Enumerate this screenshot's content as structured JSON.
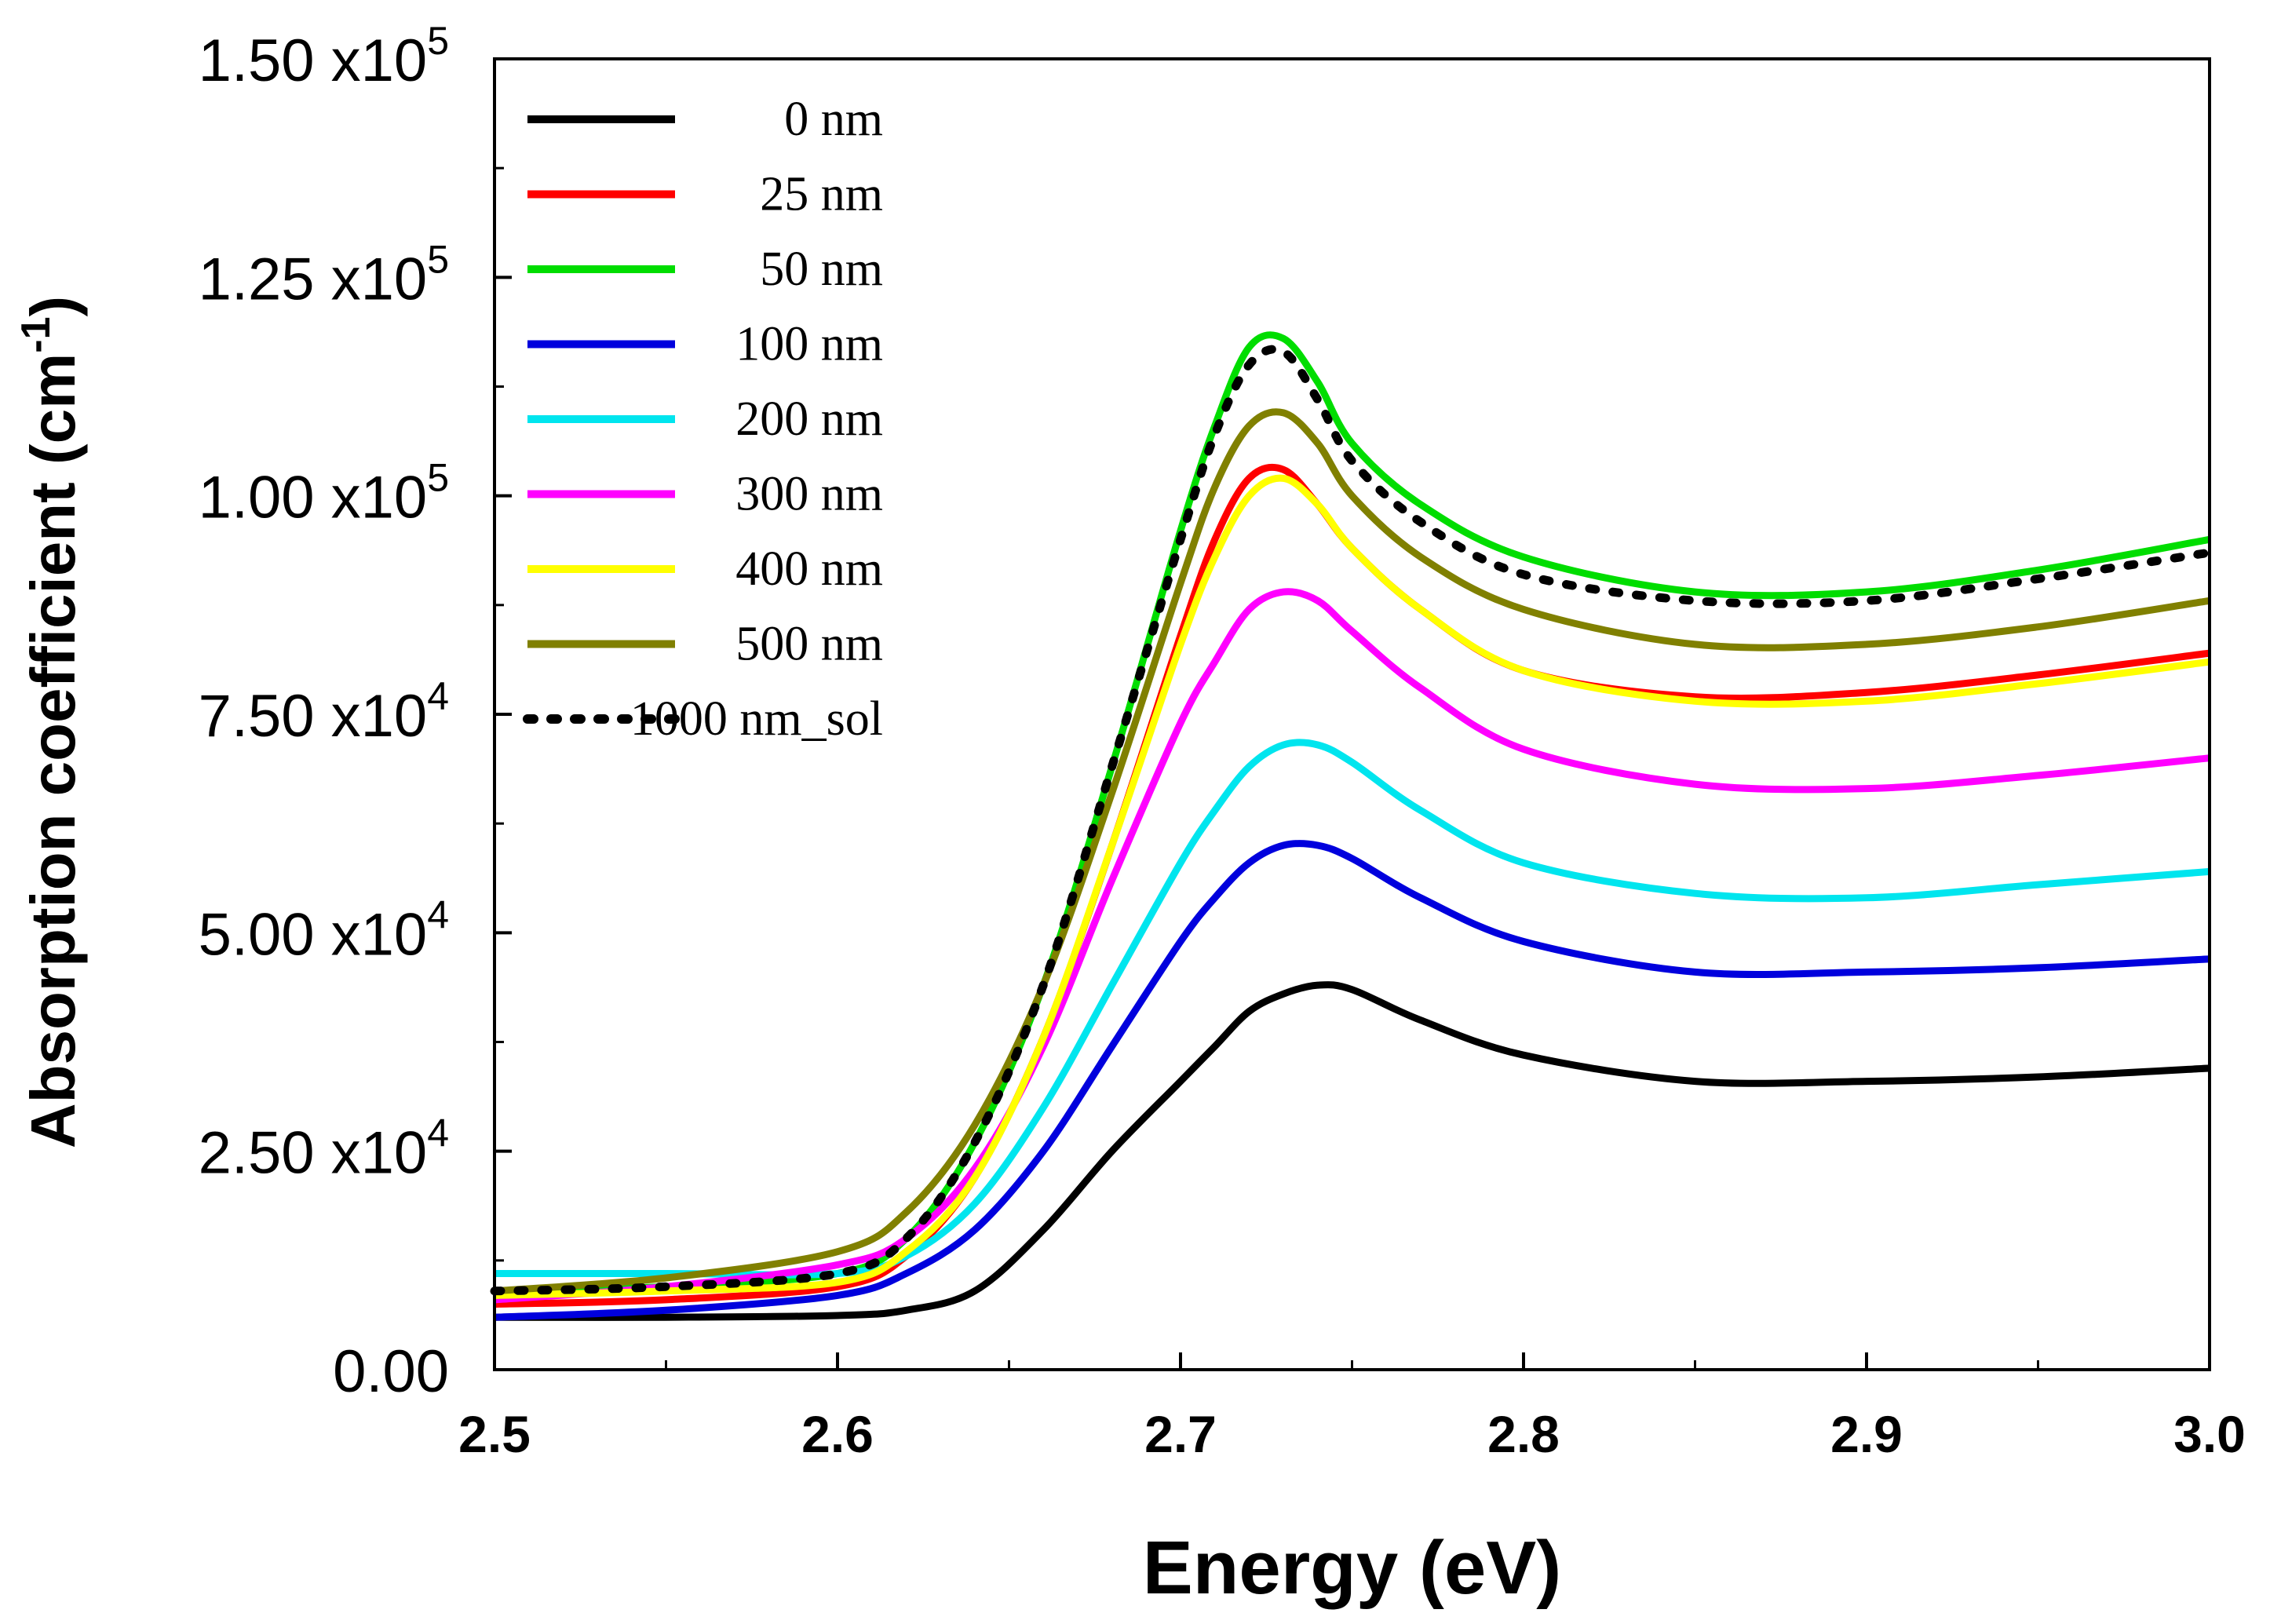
{
  "chart_data": {
    "type": "line",
    "title": "",
    "xlabel": "Energy (eV)",
    "ylabel": "Absorption coefficient (cm",
    "ylabel_sup": "-1",
    "ylabel_close": ")",
    "xlim": [
      2.5,
      3.0
    ],
    "ylim": [
      0,
      150000
    ],
    "legend_position": "top-left",
    "x_ticks": [
      2.5,
      2.6,
      2.7,
      2.8,
      2.9,
      3.0
    ],
    "x_tick_labels": [
      "2.5",
      "2.6",
      "2.7",
      "2.8",
      "2.9",
      "3.0"
    ],
    "y_ticks": [
      0,
      25000,
      50000,
      75000,
      100000,
      125000,
      150000
    ],
    "y_tick_labels": [
      {
        "mant": "0.00",
        "exp": ""
      },
      {
        "mant": "2.50",
        "exp": "4"
      },
      {
        "mant": "5.00",
        "exp": "4"
      },
      {
        "mant": "7.50",
        "exp": "4"
      },
      {
        "mant": "1.00",
        "exp": "5"
      },
      {
        "mant": "1.25",
        "exp": "5"
      },
      {
        "mant": "1.50",
        "exp": "5"
      }
    ],
    "y_tick_times": "x10",
    "x": [
      2.5,
      2.55,
      2.6,
      2.62,
      2.64,
      2.66,
      2.68,
      2.7,
      2.71,
      2.72,
      2.73,
      2.74,
      2.75,
      2.77,
      2.8,
      2.85,
      2.9,
      2.95,
      3.0
    ],
    "series": [
      {
        "name": "0 nm",
        "color": "#000000",
        "dash": false,
        "values": [
          6000,
          6000,
          6200,
          6800,
          9000,
          16000,
          25000,
          33000,
          37000,
          41000,
          43000,
          44000,
          43500,
          40000,
          36000,
          33000,
          33000,
          33500,
          34500
        ]
      },
      {
        "name": "25 nm",
        "color": "#ff0000",
        "dash": false,
        "values": [
          7500,
          8000,
          9500,
          13000,
          22000,
          38000,
          60000,
          84000,
          95000,
          102000,
          103000,
          99000,
          94000,
          87000,
          80000,
          77000,
          77500,
          79500,
          82000
        ]
      },
      {
        "name": "50 nm",
        "color": "#00dd00",
        "dash": false,
        "values": [
          9000,
          9500,
          11000,
          15000,
          26000,
          44000,
          69000,
          96000,
          108000,
          117000,
          118000,
          113000,
          106000,
          99000,
          93000,
          89000,
          89000,
          91500,
          95000
        ]
      },
      {
        "name": "100 nm",
        "color": "#0000dd",
        "dash": false,
        "values": [
          6000,
          6800,
          8500,
          11000,
          16000,
          25000,
          37000,
          49000,
          54000,
          58000,
          60000,
          60000,
          58500,
          54000,
          49000,
          45500,
          45500,
          46000,
          47000
        ]
      },
      {
        "name": "200 nm",
        "color": "#00e5ee",
        "dash": false,
        "values": [
          11000,
          11000,
          11000,
          13000,
          19000,
          30000,
          44000,
          58000,
          64000,
          69000,
          71500,
          71500,
          69500,
          64000,
          58000,
          54500,
          54000,
          55500,
          57000
        ]
      },
      {
        "name": "300 nm",
        "color": "#ff00ff",
        "dash": false,
        "values": [
          8000,
          9500,
          12000,
          15000,
          23000,
          37000,
          56000,
          74000,
          81000,
          87000,
          89000,
          88000,
          84500,
          78000,
          71000,
          67000,
          66500,
          68000,
          70000
        ]
      },
      {
        "name": "400 nm",
        "color": "#ffff00",
        "dash": false,
        "values": [
          8500,
          9000,
          10000,
          13500,
          22000,
          38000,
          60000,
          83000,
          93000,
          100000,
          102000,
          99000,
          94000,
          87000,
          80000,
          76500,
          76500,
          78500,
          81000
        ]
      },
      {
        "name": "500 nm",
        "color": "#808000",
        "dash": false,
        "values": [
          9000,
          10500,
          13500,
          18000,
          28000,
          44000,
          66000,
          90000,
          101000,
          108000,
          109500,
          106000,
          100000,
          93000,
          87000,
          83000,
          83000,
          85000,
          88000
        ]
      },
      {
        "name": "1000 nm_sol",
        "color": "#000000",
        "dash": true,
        "values": [
          9000,
          9500,
          11000,
          15000,
          26000,
          44000,
          69000,
          95000,
          107000,
          115000,
          116500,
          111000,
          104000,
          97000,
          91000,
          88000,
          88000,
          90500,
          93500
        ]
      }
    ]
  }
}
